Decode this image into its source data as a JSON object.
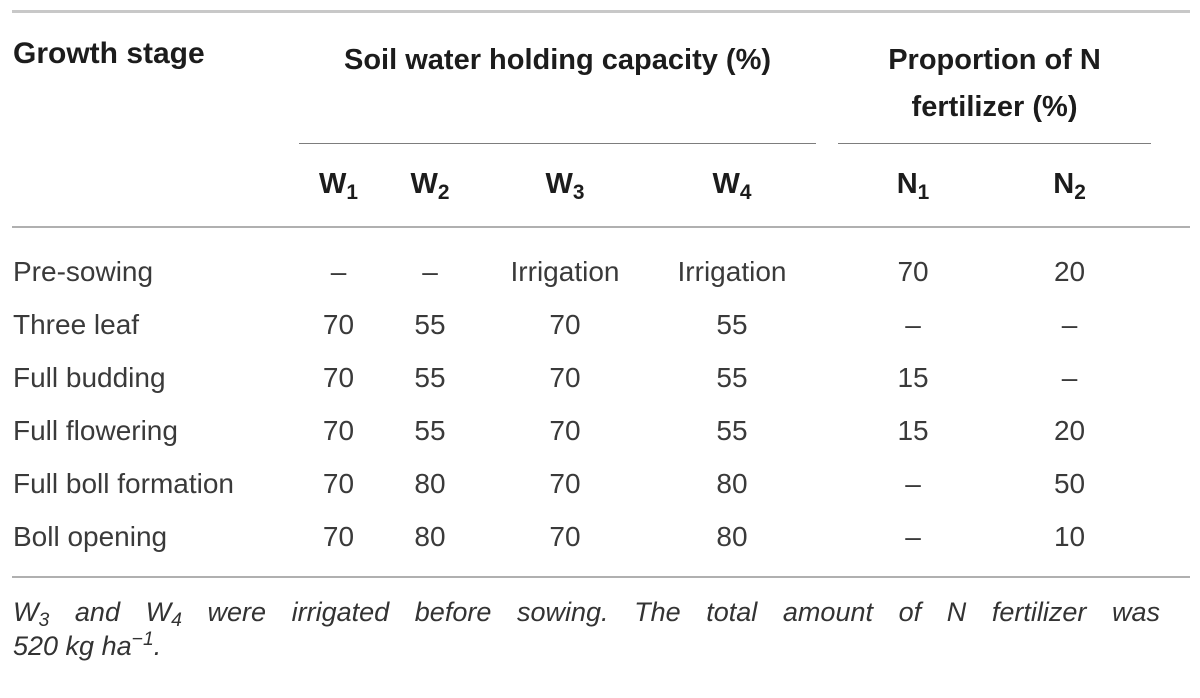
{
  "colors": {
    "heading_text": "#1c1c1c",
    "body_text": "#3a3a3a",
    "rule_top": "#c8c8c8",
    "rule_mid": "#b0b0b0",
    "rule_spanner": "#7d7d7d"
  },
  "table": {
    "growth_stage_header": "Growth stage",
    "group_headers": [
      {
        "label": "Soil water holding capacity (%)",
        "span": 4
      },
      {
        "label": "Proportion of N fertilizer (%)",
        "span": 2
      }
    ],
    "sub_headers": [
      [
        {
          "t": "W"
        },
        {
          "sub": "1"
        }
      ],
      [
        {
          "t": "W"
        },
        {
          "sub": "2"
        }
      ],
      [
        {
          "t": "W"
        },
        {
          "sub": "3"
        }
      ],
      [
        {
          "t": "W"
        },
        {
          "sub": "4"
        }
      ],
      [
        {
          "t": "N"
        },
        {
          "sub": "1"
        }
      ],
      [
        {
          "t": "N"
        },
        {
          "sub": "2"
        }
      ]
    ],
    "rows": [
      {
        "stage": "Pre-sowing",
        "values": [
          "–",
          "–",
          "Irrigation",
          "Irrigation",
          "70",
          "20"
        ]
      },
      {
        "stage": "Three leaf",
        "values": [
          "70",
          "55",
          "70",
          "55",
          "–",
          "–"
        ]
      },
      {
        "stage": "Full budding",
        "values": [
          "70",
          "55",
          "70",
          "55",
          "15",
          "–"
        ]
      },
      {
        "stage": "Full flowering",
        "values": [
          "70",
          "55",
          "70",
          "55",
          "15",
          "20"
        ]
      },
      {
        "stage": "Full boll formation",
        "values": [
          "70",
          "80",
          "70",
          "80",
          "–",
          "50"
        ]
      },
      {
        "stage": "Boll opening",
        "values": [
          "70",
          "80",
          "70",
          "80",
          "–",
          "10"
        ]
      }
    ],
    "footnote_lines": [
      [
        {
          "t": "W"
        },
        {
          "sub": "3"
        },
        {
          "t": " and W"
        },
        {
          "sub": "4"
        },
        {
          "t": " were irrigated before sowing. The total amount of N fertilizer was"
        }
      ],
      [
        {
          "t": "520 kg ha"
        },
        {
          "sup": "−1"
        },
        {
          "t": "."
        }
      ]
    ]
  }
}
